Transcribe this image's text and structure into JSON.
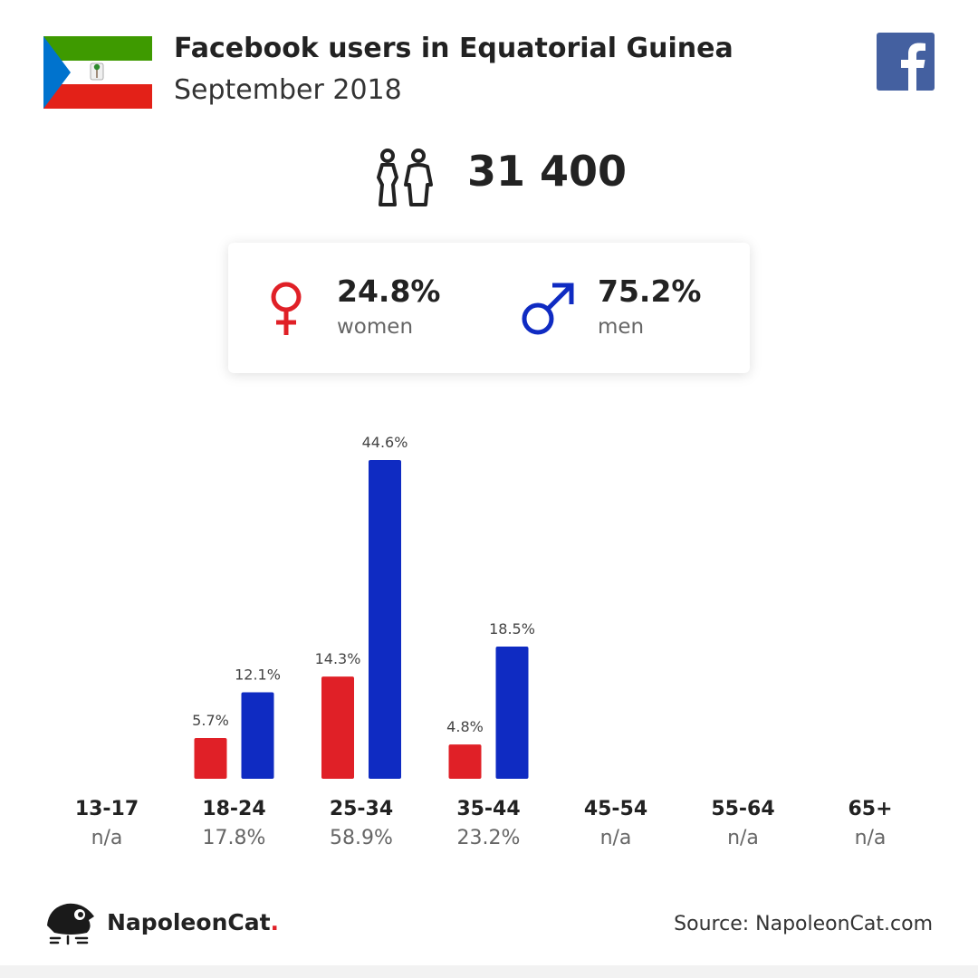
{
  "header": {
    "title": "Facebook users in Equatorial Guinea",
    "subtitle": "September 2018"
  },
  "icons": {
    "flag": "equatorial-guinea-flag",
    "social": "facebook-logo",
    "people": "people-icon",
    "female": "female-symbol-icon",
    "male": "male-symbol-icon",
    "brand": "napoleoncat-mascot-icon"
  },
  "total": "31 400",
  "gender": {
    "women_pct": "24.8%",
    "women_label": "women",
    "men_pct": "75.2%",
    "men_label": "men"
  },
  "colors": {
    "women": "#e02027",
    "men": "#0f2bc2",
    "facebook": "#4460a0",
    "flag_green": "#3e9a00",
    "flag_red": "#e32118",
    "flag_blue": "#0073ce"
  },
  "chart_data": {
    "type": "bar",
    "categories": [
      "13-17",
      "18-24",
      "25-34",
      "35-44",
      "45-54",
      "55-64",
      "65+"
    ],
    "category_totals": [
      "n/a",
      "17.8%",
      "58.9%",
      "23.2%",
      "n/a",
      "n/a",
      "n/a"
    ],
    "series": [
      {
        "name": "women",
        "values": [
          null,
          5.7,
          14.3,
          4.8,
          null,
          null,
          null
        ],
        "labels": [
          "",
          "5.7%",
          "14.3%",
          "4.8%",
          "",
          "",
          ""
        ]
      },
      {
        "name": "men",
        "values": [
          null,
          12.1,
          44.6,
          18.5,
          null,
          null,
          null
        ],
        "labels": [
          "",
          "12.1%",
          "44.6%",
          "18.5%",
          "",
          "",
          ""
        ]
      }
    ],
    "ylim": [
      0,
      44.6
    ]
  },
  "footer": {
    "brand": "NapoleonCat",
    "brand_dot": ".",
    "source": "Source: NapoleonCat.com"
  }
}
